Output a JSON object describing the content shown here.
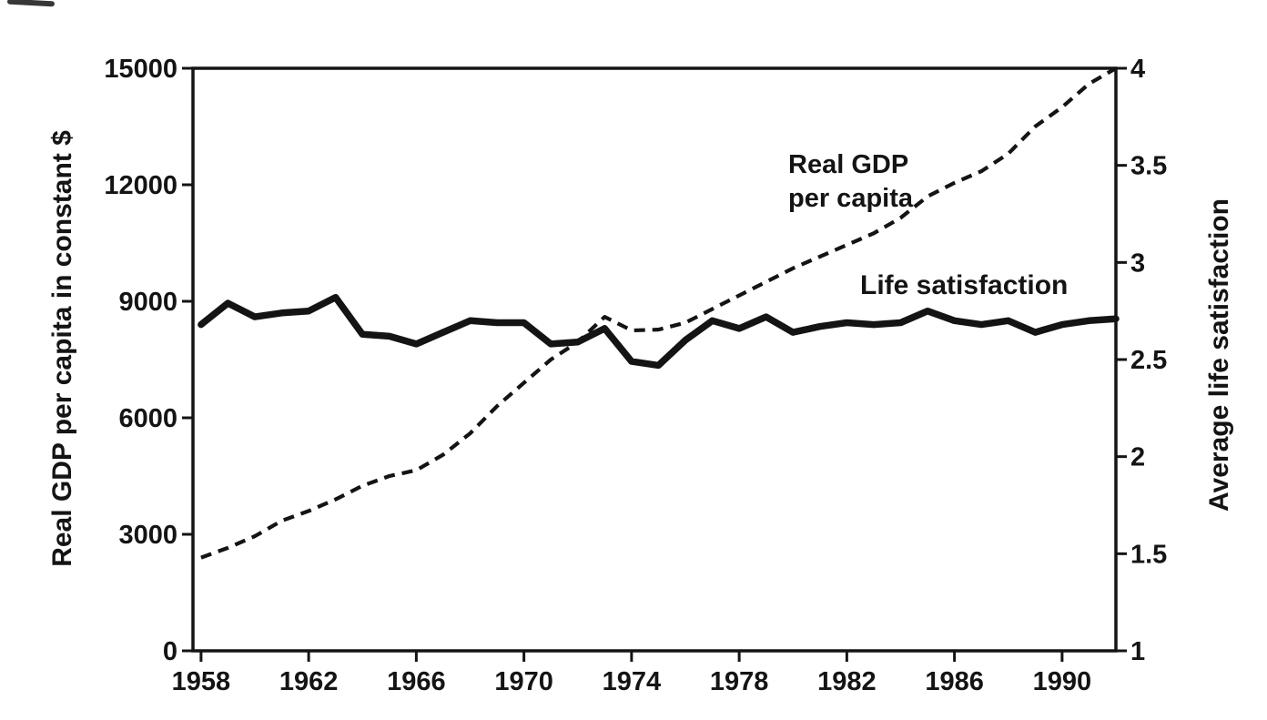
{
  "figure": {
    "background": "#ffffff",
    "ink_color": "#141414"
  },
  "chart_data": {
    "type": "line",
    "title": "",
    "grid": false,
    "legend_position": "inline-labels",
    "x_axis": {
      "label": "",
      "ticks": [
        1958,
        1962,
        1966,
        1970,
        1974,
        1978,
        1982,
        1986,
        1990
      ],
      "tick_labels": [
        "1958",
        "1962",
        "1966",
        "1970",
        "1974",
        "1978",
        "1982",
        "1986",
        "1990"
      ],
      "range": [
        1957.7,
        1992
      ]
    },
    "left_axis": {
      "label": "Real GDP per capita in constant $",
      "ticks": [
        0,
        3000,
        6000,
        9000,
        12000,
        15000
      ],
      "range": [
        0,
        15000
      ]
    },
    "right_axis": {
      "label": "Average life satisfaction",
      "ticks": [
        1,
        1.5,
        2,
        2.5,
        3,
        3.5,
        4
      ],
      "range": [
        1,
        4
      ]
    },
    "years": [
      1958,
      1959,
      1960,
      1961,
      1962,
      1963,
      1964,
      1965,
      1966,
      1967,
      1968,
      1969,
      1970,
      1971,
      1972,
      1973,
      1974,
      1975,
      1976,
      1977,
      1978,
      1979,
      1980,
      1981,
      1982,
      1983,
      1984,
      1985,
      1986,
      1987,
      1988,
      1989,
      1990,
      1991,
      1992
    ],
    "series": [
      {
        "name": "Real GDP per capita",
        "axis": "left",
        "line_style": "dashed",
        "color": "#141414",
        "values": [
          2400,
          2650,
          2950,
          3350,
          3600,
          3900,
          4250,
          4500,
          4650,
          5050,
          5600,
          6300,
          6900,
          7500,
          7950,
          8600,
          8250,
          8270,
          8450,
          8800,
          9150,
          9500,
          9850,
          10150,
          10450,
          10750,
          11150,
          11700,
          12050,
          12350,
          12800,
          13500,
          14000,
          14600,
          15000
        ]
      },
      {
        "name": "Life satisfaction",
        "axis": "right",
        "line_style": "solid",
        "color": "#141414",
        "values": [
          2.68,
          2.79,
          2.72,
          2.74,
          2.75,
          2.82,
          2.63,
          2.62,
          2.58,
          2.64,
          2.7,
          2.69,
          2.69,
          2.58,
          2.59,
          2.66,
          2.49,
          2.47,
          2.6,
          2.7,
          2.66,
          2.72,
          2.64,
          2.67,
          2.69,
          2.68,
          2.69,
          2.75,
          2.7,
          2.68,
          2.7,
          2.64,
          2.68,
          2.7,
          2.71
        ]
      }
    ],
    "annotations": [
      {
        "id": "gdp-label",
        "lines": [
          "Real GDP",
          "per capita"
        ]
      },
      {
        "id": "ls-label",
        "lines": [
          "Life satisfaction"
        ]
      }
    ]
  }
}
